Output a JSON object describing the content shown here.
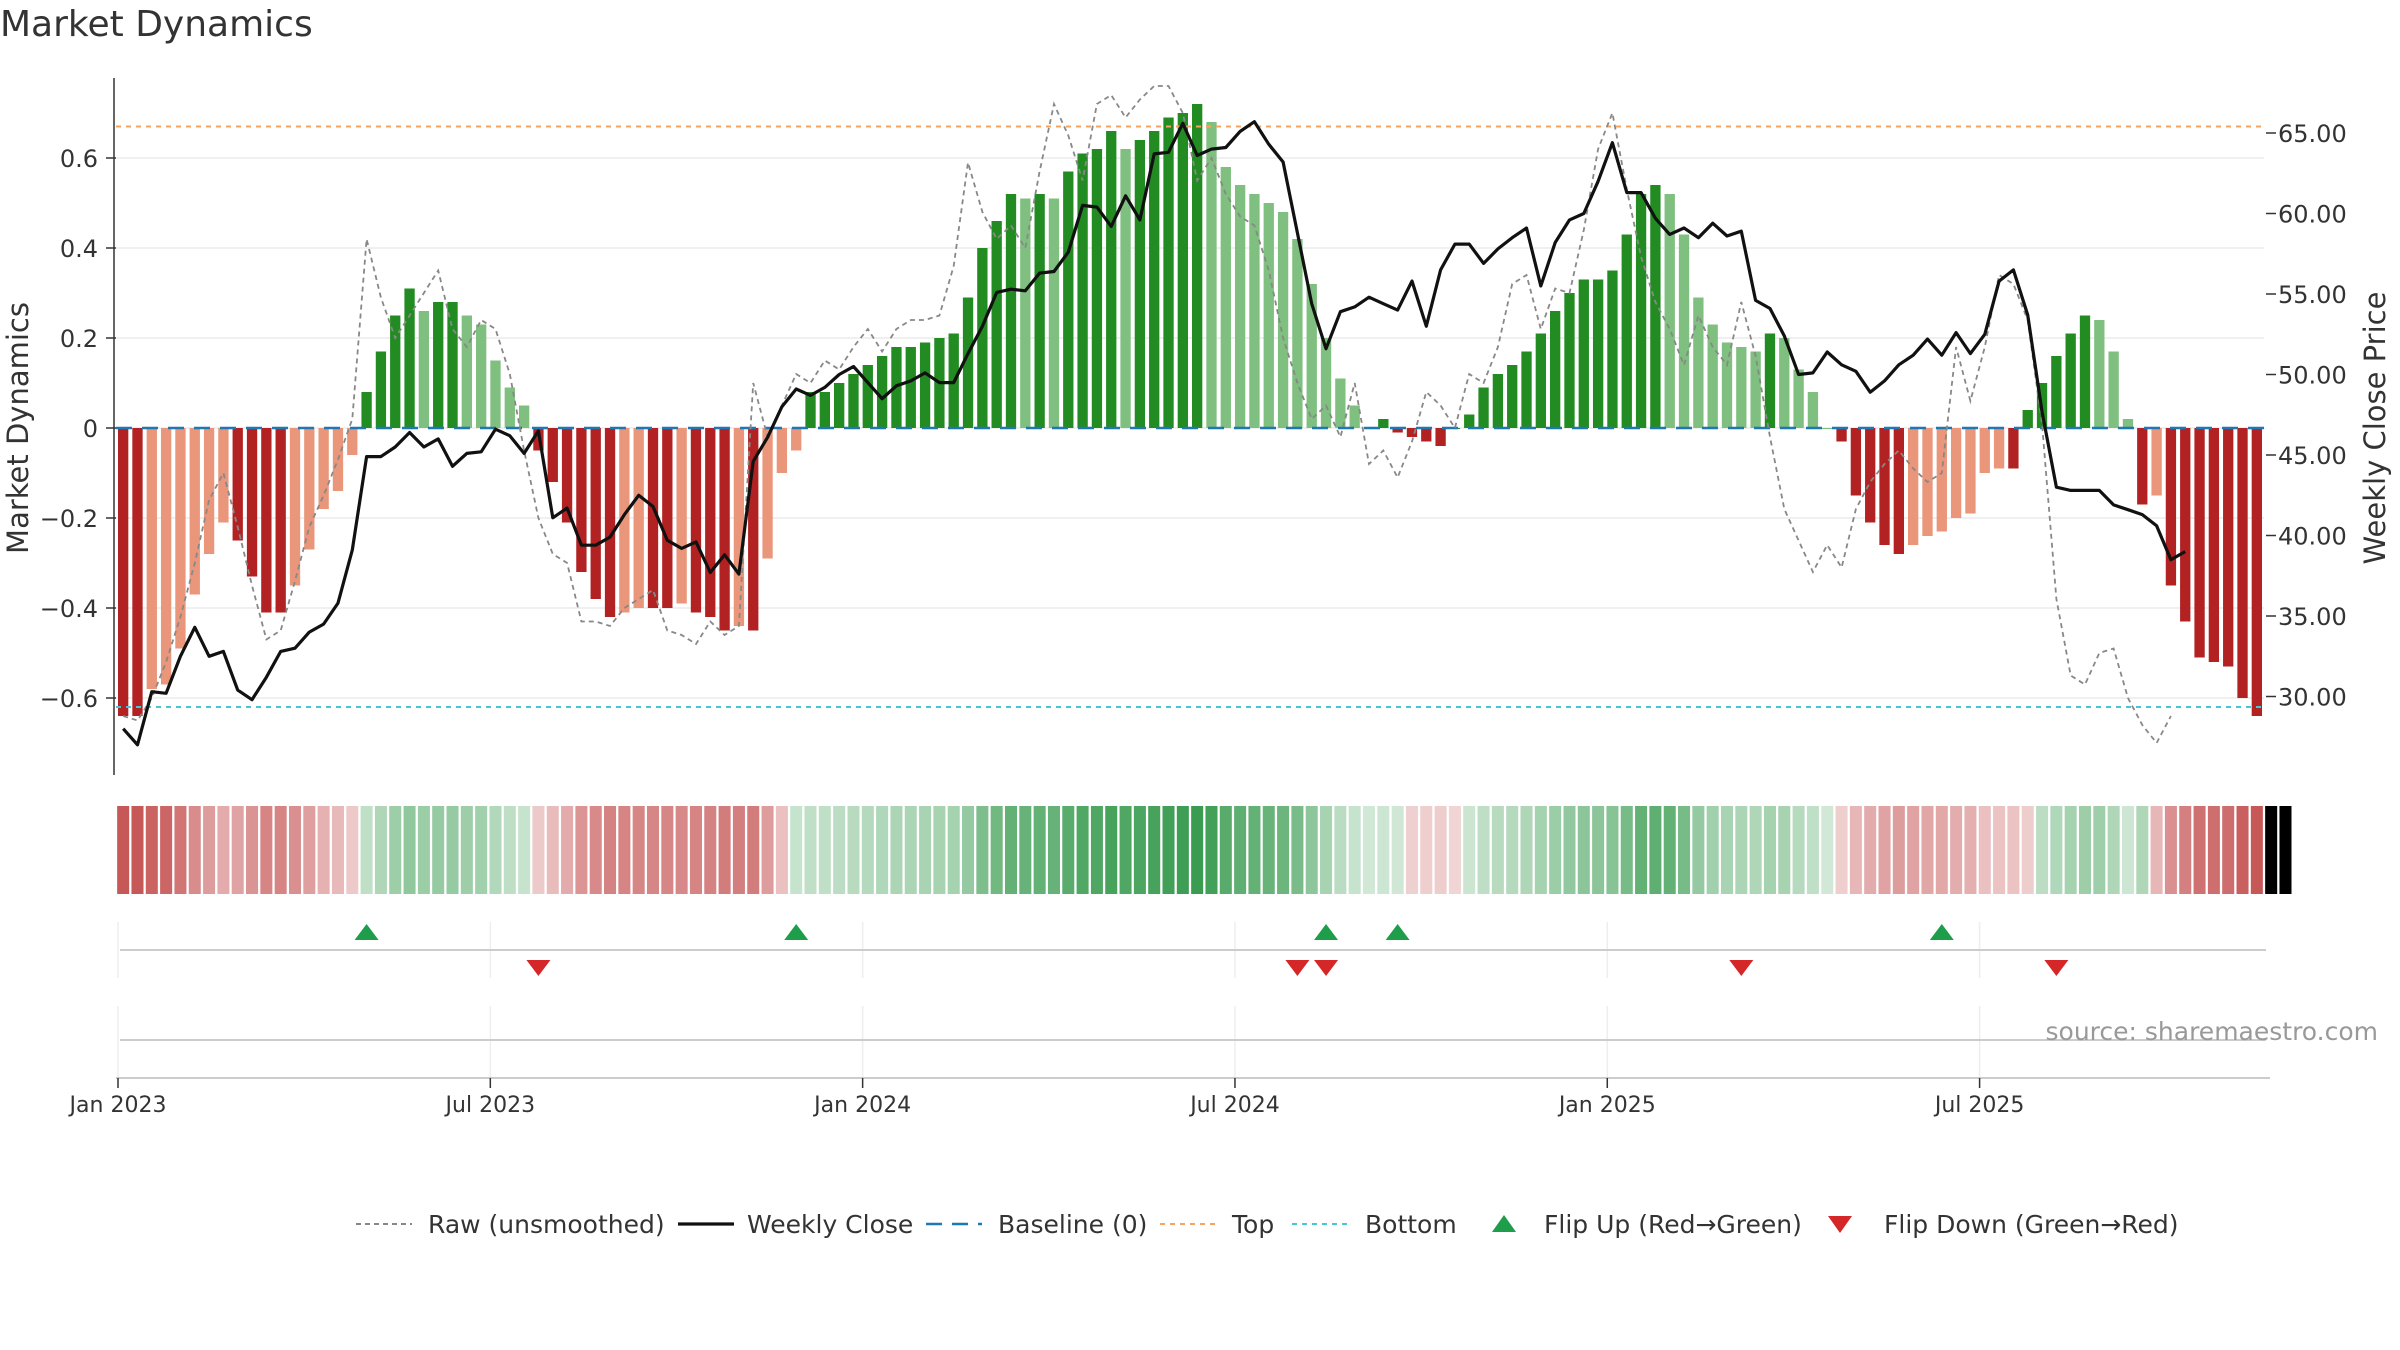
{
  "title": "Market Dynamics",
  "source": "source: sharemaestro.com",
  "colors": {
    "strong_green": "#228b22",
    "light_green": "#7fbf7f",
    "strong_red": "#b22222",
    "light_red": "#e9967a",
    "weekly_close": "#111111",
    "raw": "#888888",
    "baseline": "#1f77b4",
    "top": "#f4a460",
    "bottom": "#4dc3d6",
    "flip_up": "#1e9e4a",
    "flip_down": "#d62728"
  },
  "chart_data": {
    "type": "bar",
    "title": "Market Dynamics",
    "ylabel_left": "Market Dynamics",
    "ylabel_right": "Weekly Close Price",
    "ylim_left": [
      -0.75,
      0.75
    ],
    "ylim_right": [
      26,
      66
    ],
    "left_ticks": [
      "0.6",
      "0.4",
      "0.2",
      "0",
      "−0.2",
      "−0.4",
      "−0.6"
    ],
    "left_tick_values": [
      0.6,
      0.4,
      0.2,
      0,
      -0.2,
      -0.4,
      -0.6
    ],
    "right_ticks": [
      "65.00",
      "60.00",
      "55.00",
      "50.00",
      "45.00",
      "40.00",
      "35.00",
      "30.00"
    ],
    "right_tick_values": [
      65,
      60,
      55,
      50,
      45,
      40,
      35,
      30
    ],
    "x_ticks": [
      "Jan 2023",
      "Jul 2023",
      "Jan 2024",
      "Jul 2024",
      "Jan 2025",
      "Jul 2025"
    ],
    "x_tick_weeks": [
      0,
      26,
      52,
      78,
      104,
      130
    ],
    "start_date": "2023-01-01",
    "top_level": 0.67,
    "bottom_level": -0.62,
    "baseline": 0,
    "grid": true,
    "legend_position": "bottom",
    "series_smoothed": [
      -0.64,
      -0.64,
      -0.58,
      -0.57,
      -0.49,
      -0.37,
      -0.28,
      -0.21,
      -0.25,
      -0.33,
      -0.41,
      -0.41,
      -0.35,
      -0.27,
      -0.18,
      -0.14,
      -0.06,
      0.08,
      0.17,
      0.25,
      0.31,
      0.26,
      0.28,
      0.28,
      0.25,
      0.23,
      0.15,
      0.09,
      0.05,
      -0.05,
      -0.12,
      -0.21,
      -0.32,
      -0.38,
      -0.42,
      -0.41,
      -0.4,
      -0.4,
      -0.4,
      -0.39,
      -0.41,
      -0.42,
      -0.45,
      -0.44,
      -0.45,
      -0.29,
      -0.1,
      -0.05,
      0.08,
      0.08,
      0.1,
      0.12,
      0.14,
      0.16,
      0.18,
      0.18,
      0.19,
      0.2,
      0.21,
      0.29,
      0.4,
      0.46,
      0.52,
      0.51,
      0.52,
      0.51,
      0.57,
      0.61,
      0.62,
      0.66,
      0.62,
      0.64,
      0.66,
      0.69,
      0.7,
      0.72,
      0.68,
      0.58,
      0.54,
      0.52,
      0.5,
      0.48,
      0.42,
      0.32,
      0.2,
      0.11,
      0.05,
      0.0,
      0.02,
      -0.01,
      -0.02,
      -0.03,
      -0.04,
      0.0,
      0.03,
      0.09,
      0.12,
      0.14,
      0.17,
      0.21,
      0.26,
      0.3,
      0.33,
      0.33,
      0.35,
      0.43,
      0.52,
      0.54,
      0.52,
      0.43,
      0.29,
      0.23,
      0.19,
      0.18,
      0.17,
      0.21,
      0.2,
      0.13,
      0.08,
      0.0,
      -0.03,
      -0.15,
      -0.21,
      -0.26,
      -0.28,
      -0.26,
      -0.24,
      -0.23,
      -0.2,
      -0.19,
      -0.1,
      -0.09,
      -0.09,
      0.04,
      0.1,
      0.16,
      0.21,
      0.25,
      0.24,
      0.17,
      0.02,
      -0.17,
      -0.15,
      -0.35,
      -0.43,
      -0.51,
      -0.52,
      -0.53,
      -0.6,
      -0.64
    ],
    "series_raw": [
      -0.64,
      -0.65,
      -0.6,
      -0.52,
      -0.42,
      -0.3,
      -0.16,
      -0.1,
      -0.22,
      -0.35,
      -0.47,
      -0.45,
      -0.34,
      -0.22,
      -0.15,
      -0.07,
      0.02,
      0.42,
      0.29,
      0.2,
      0.25,
      0.3,
      0.35,
      0.22,
      0.18,
      0.24,
      0.22,
      0.12,
      -0.05,
      -0.2,
      -0.28,
      -0.3,
      -0.43,
      -0.43,
      -0.44,
      -0.4,
      -0.38,
      -0.36,
      -0.45,
      -0.46,
      -0.48,
      -0.43,
      -0.46,
      -0.44,
      0.1,
      -0.02,
      0.05,
      0.12,
      0.1,
      0.15,
      0.13,
      0.18,
      0.22,
      0.17,
      0.22,
      0.24,
      0.24,
      0.25,
      0.36,
      0.59,
      0.48,
      0.42,
      0.45,
      0.4,
      0.57,
      0.72,
      0.65,
      0.55,
      0.72,
      0.74,
      0.69,
      0.73,
      0.76,
      0.76,
      0.7,
      0.55,
      0.6,
      0.52,
      0.47,
      0.45,
      0.35,
      0.2,
      0.1,
      0.02,
      0.05,
      -0.02,
      0.1,
      -0.08,
      -0.05,
      -0.11,
      -0.03,
      0.08,
      0.05,
      0.0,
      0.12,
      0.1,
      0.18,
      0.32,
      0.34,
      0.22,
      0.31,
      0.3,
      0.44,
      0.62,
      0.7,
      0.53,
      0.38,
      0.28,
      0.22,
      0.14,
      0.25,
      0.18,
      0.14,
      0.28,
      0.16,
      -0.02,
      -0.18,
      -0.25,
      -0.32,
      -0.26,
      -0.31,
      -0.18,
      -0.12,
      -0.08,
      -0.05,
      -0.09,
      -0.12,
      -0.1,
      0.18,
      0.06,
      0.18,
      0.34,
      0.32,
      0.24,
      0.01,
      -0.38,
      -0.55,
      -0.57,
      -0.5,
      -0.49,
      -0.6,
      -0.66,
      -0.7,
      -0.64
    ],
    "series_close": [
      28.0,
      27.0,
      30.3,
      30.2,
      32.5,
      34.3,
      32.5,
      32.8,
      30.4,
      29.8,
      31.2,
      32.8,
      33.0,
      34.0,
      34.5,
      35.8,
      39.1,
      44.9,
      44.9,
      45.5,
      46.4,
      45.5,
      46.0,
      44.3,
      45.1,
      45.2,
      46.6,
      46.2,
      45.1,
      46.5,
      41.1,
      41.7,
      39.4,
      39.4,
      39.9,
      41.3,
      42.5,
      41.8,
      39.7,
      39.2,
      39.6,
      37.7,
      38.8,
      37.6,
      44.6,
      46.1,
      48.0,
      49.1,
      48.7,
      49.2,
      50.0,
      50.5,
      49.5,
      48.5,
      49.3,
      49.6,
      50.1,
      49.5,
      49.5,
      51.3,
      53.0,
      55.1,
      55.3,
      55.2,
      56.3,
      56.4,
      57.6,
      60.5,
      60.4,
      59.2,
      61.1,
      59.6,
      63.7,
      63.8,
      65.6,
      63.6,
      64.0,
      64.1,
      65.1,
      65.7,
      64.3,
      63.2,
      58.8,
      54.4,
      51.6,
      53.9,
      54.2,
      54.8,
      54.4,
      54.0,
      55.8,
      53.0,
      56.5,
      58.1,
      58.1,
      56.9,
      57.8,
      58.5,
      59.1,
      55.5,
      58.2,
      59.6,
      60.0,
      62.0,
      64.4,
      61.3,
      61.3,
      59.7,
      58.7,
      59.1,
      58.5,
      59.4,
      58.6,
      58.9,
      54.6,
      54.1,
      52.4,
      50.0,
      50.1,
      51.4,
      50.6,
      50.2,
      48.9,
      49.6,
      50.6,
      51.2,
      52.2,
      51.2,
      52.6,
      51.3,
      52.5,
      55.8,
      56.5,
      53.7,
      47.7,
      43.0,
      42.8,
      42.8,
      42.8,
      41.9,
      41.6,
      41.3,
      40.6,
      38.5,
      39.0
    ],
    "state_strip": [
      -1,
      -1,
      -1,
      -1,
      -1,
      -1,
      -1,
      -1,
      -1,
      -1,
      -1,
      -1,
      -1,
      -1,
      -1,
      -1,
      -1,
      1,
      1,
      1,
      1,
      1,
      1,
      1,
      1,
      1,
      1,
      1,
      1,
      -1,
      -1,
      -1,
      -1,
      -1,
      -1,
      -1,
      -1,
      -1,
      -1,
      -1,
      -1,
      -1,
      -1,
      -1,
      -1,
      -1,
      -1,
      1,
      1,
      1,
      1,
      1,
      1,
      1,
      1,
      1,
      1,
      1,
      1,
      1,
      1,
      1,
      1,
      1,
      1,
      1,
      1,
      1,
      1,
      1,
      1,
      1,
      1,
      1,
      1,
      1,
      1,
      1,
      1,
      1,
      1,
      1,
      1,
      1,
      1,
      1,
      1,
      1,
      1,
      1,
      -1,
      -1,
      -1,
      -1,
      1,
      1,
      1,
      1,
      1,
      1,
      1,
      1,
      1,
      1,
      1,
      1,
      1,
      1,
      1,
      1,
      1,
      1,
      1,
      1,
      1,
      1,
      1,
      1,
      1,
      1,
      -1,
      -1,
      -1,
      -1,
      -1,
      -1,
      -1,
      -1,
      -1,
      -1,
      -1,
      -1,
      -1,
      -1,
      1,
      1,
      1,
      1,
      1,
      1,
      1,
      1,
      -1,
      -1,
      -1,
      -1,
      -1,
      -1,
      -1,
      -1,
      -1,
      -1
    ],
    "flip_up_weeks": [
      17,
      47,
      84,
      89,
      127
    ],
    "flip_down_weeks": [
      29,
      82,
      84,
      113,
      135
    ],
    "legend": [
      "Raw (unsmoothed)",
      "Weekly Close",
      "Baseline (0)",
      "Top",
      "Bottom",
      "Flip Up (Red→Green)",
      "Flip Down (Green→Red)"
    ]
  }
}
